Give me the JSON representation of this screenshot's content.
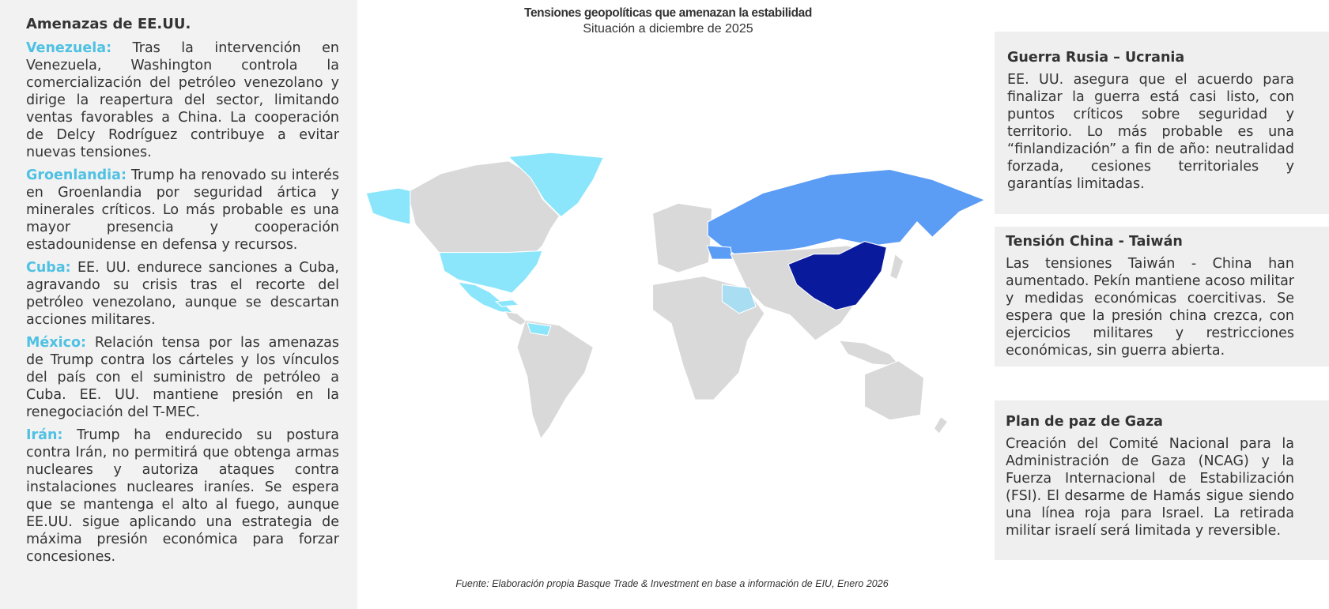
{
  "left": {
    "title": "Amenazas de EE.UU.",
    "items": [
      {
        "label": "Venezuela:",
        "text": "Tras la intervención en Venezuela, Washington controla la comercialización del petróleo venezolano y dirige la reapertura del sector, limitando ventas favorables a China. La cooperación de Delcy Rodríguez contribuye a evitar nuevas tensiones."
      },
      {
        "label": "Groenlandia:",
        "text": "Trump ha renovado su interés en Groenlandia por seguridad ártica y minerales críticos. Lo más probable es una mayor presencia y cooperación estadounidense en defensa y recursos."
      },
      {
        "label": "Cuba:",
        "text": "EE. UU. endurece sanciones a Cuba, agravando su crisis tras el recorte del petróleo venezolano, aunque se descartan acciones militares."
      },
      {
        "label": "México:",
        "text": "Relación tensa por las amenazas de Trump contra los cárteles y los vínculos del país con el suministro de petróleo a Cuba. EE. UU. mantiene presión en la renegociación del T-MEC."
      },
      {
        "label": "Irán:",
        "text": "Trump ha endurecido su postura contra Irán, no permitirá que obtenga armas nucleares y autoriza ataques contra instalaciones nucleares iraníes. Se espera que se mantenga el alto al fuego, aunque EE.UU. sigue aplicando una estrategia de máxima presión económica para forzar concesiones."
      }
    ]
  },
  "header": {
    "title": "Tensiones geopolíticas que amenazan la estabilidad",
    "subtitle": "Situación a diciembre de 2025"
  },
  "panels": [
    {
      "title": "Guerra Rusia – Ucrania",
      "text": "EE. UU. asegura que el acuerdo para finalizar la guerra está casi listo, con puntos críticos sobre seguridad y territorio. Lo más probable es una “finlandización” a fin de año: neutralidad forzada, cesiones territoriales y garantías limitadas."
    },
    {
      "title": "Tensión China - Taiwán",
      "text": "Las tensiones Taiwán - China han aumentado. Pekín mantiene acoso militar y medidas económicas coercitivas. Se espera que la presión china crezca, con ejercicios militares y restricciones económicas, sin guerra abierta."
    },
    {
      "title": "Plan de paz de Gaza",
      "text": "Creación del Comité Nacional para la Administración de Gaza (NCAG) y la Fuerza Internacional de Estabilización (FSI). El desarme de Hamás sigue siendo una línea roja para Israel. La retirada militar israelí será limitada y reversible."
    }
  ],
  "source": "Fuente: Elaboración propia Basque Trade & Investment en base a información de EIU, Enero 2026"
}
